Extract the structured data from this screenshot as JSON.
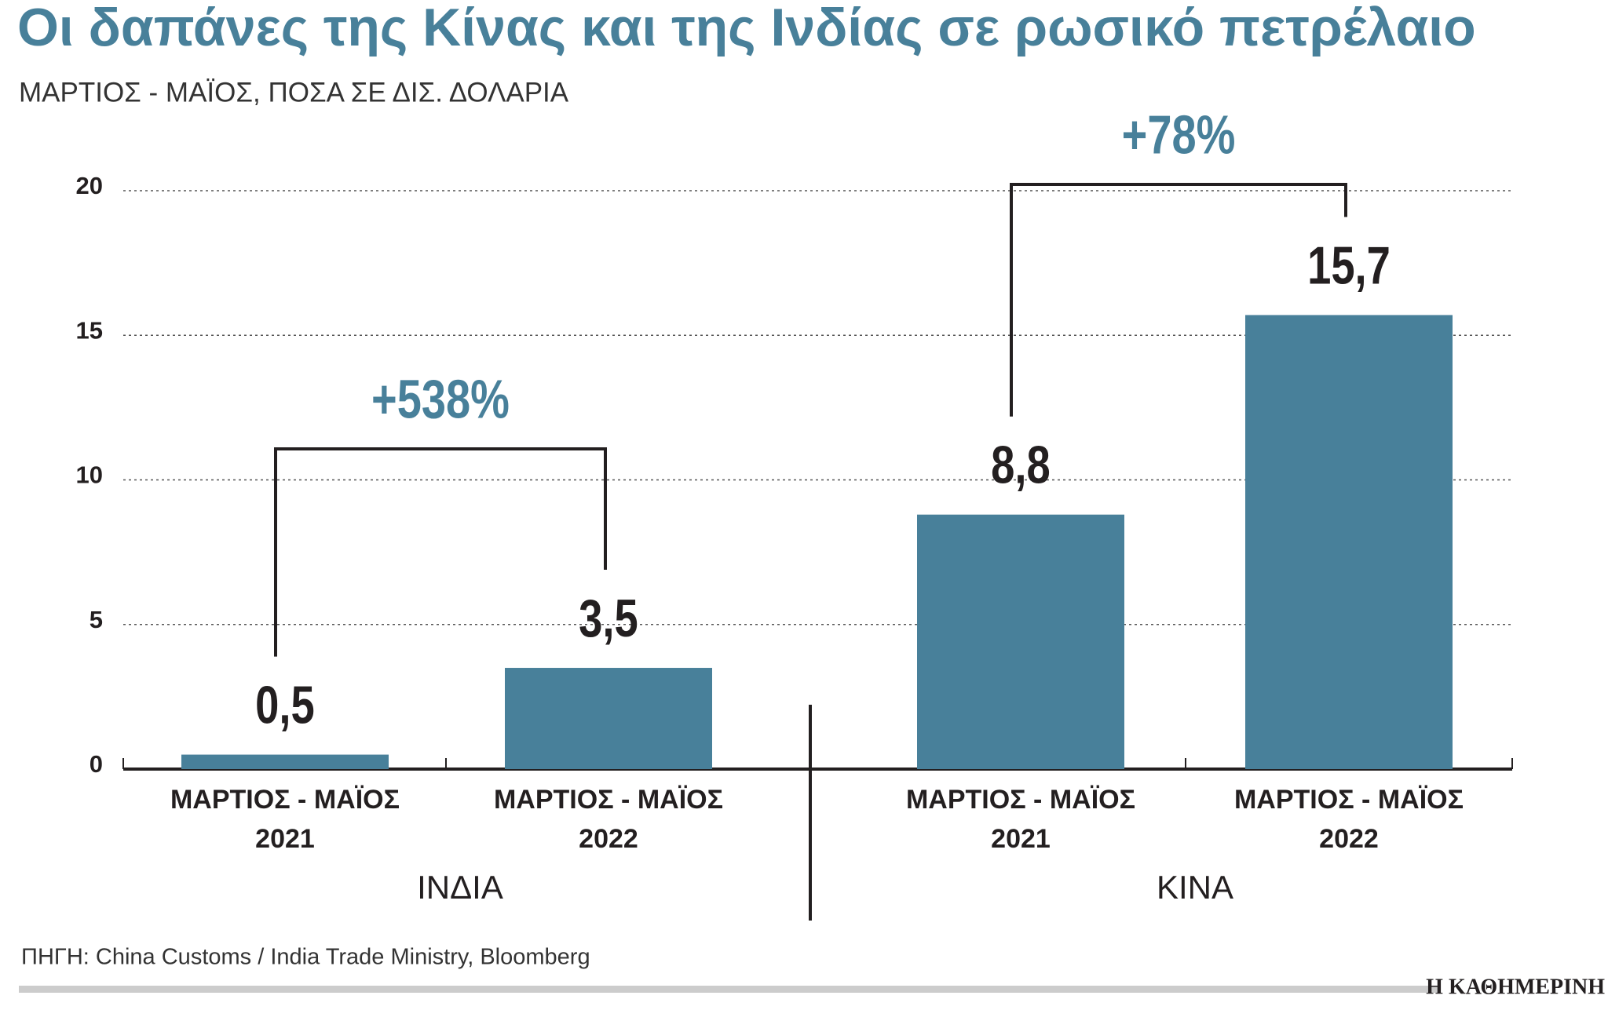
{
  "chart_data": {
    "type": "bar",
    "title": "Οι δαπάνες της Κίνας και της Ινδίας σε ρωσικό πετρέλαιο",
    "subtitle": "ΜΑΡΤΙΟΣ - ΜΑΪΟΣ, ΠΟΣΑ ΣΕ ΔΙΣ. ΔΟΛΑΡΙΑ",
    "color": "#48809a",
    "ylim": [
      0,
      20
    ],
    "yticks": [
      0,
      5,
      10,
      15,
      20
    ],
    "grid": true,
    "groups": [
      {
        "name": "ΙΝΔΙΑ",
        "categories": [
          [
            "ΜΑΡΤΙΟΣ - ΜΑΪΟΣ",
            "2021"
          ],
          [
            "ΜΑΡΤΙΟΣ - ΜΑΪΟΣ",
            "2022"
          ]
        ],
        "values": [
          0.5,
          3.5
        ],
        "value_labels": [
          "0,5",
          "3,5"
        ],
        "change": "+538%"
      },
      {
        "name": "ΚΙΝΑ",
        "categories": [
          [
            "ΜΑΡΤΙΟΣ - ΜΑΪΟΣ",
            "2021"
          ],
          [
            "ΜΑΡΤΙΟΣ - ΜΑΪΟΣ",
            "2022"
          ]
        ],
        "values": [
          8.8,
          15.7
        ],
        "value_labels": [
          "8,8",
          "15,7"
        ],
        "change": "+78%"
      }
    ],
    "source": "ΠΗΓΗ: China Customs / India Trade Ministry, Bloomberg",
    "brand": "Η ΚΑΘΗΜΕΡΙΝΗ"
  }
}
